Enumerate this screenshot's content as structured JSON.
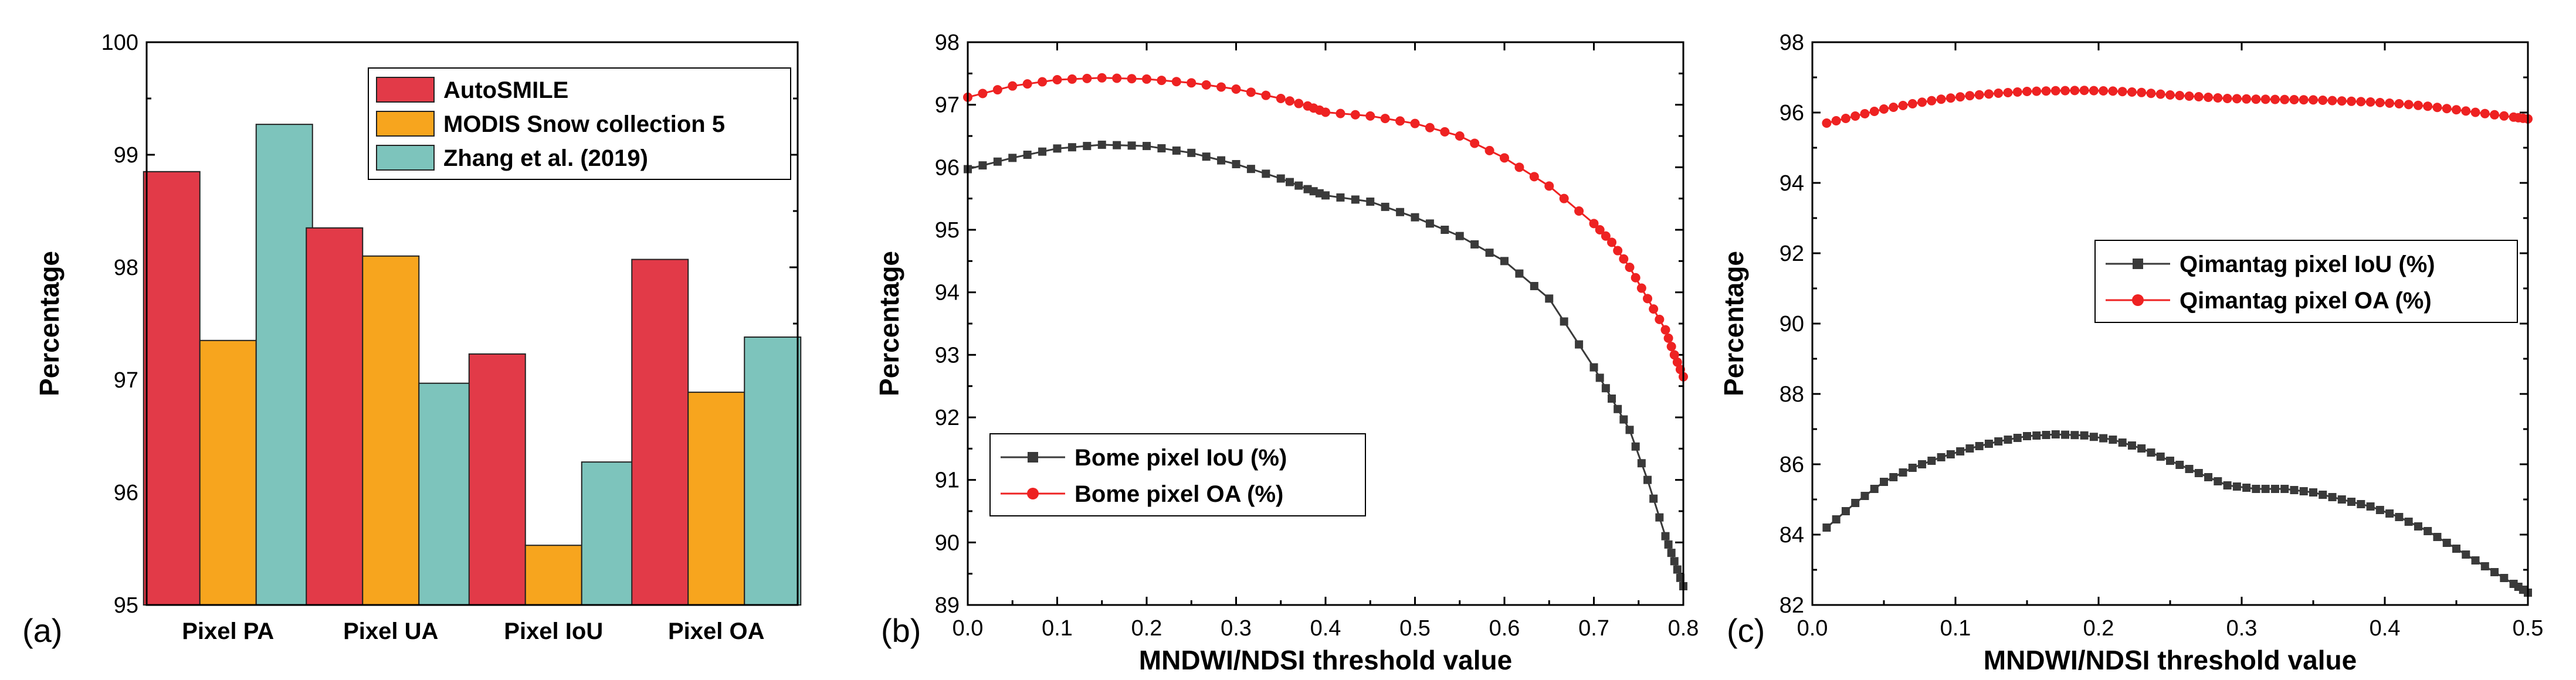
{
  "chart_data": [
    {
      "panel": "(a)",
      "type": "bar",
      "title": "",
      "xlabel": "",
      "ylabel": "Percentage",
      "ylim": [
        95,
        100
      ],
      "yticks": [
        "95",
        "96",
        "97",
        "98",
        "99",
        "100"
      ],
      "categories": [
        "Pixel PA",
        "Pixel UA",
        "Pixel IoU",
        "Pixel OA"
      ],
      "series": [
        {
          "name": "AutoSMILE",
          "color": "#e23a48",
          "values": [
            98.85,
            98.35,
            97.23,
            98.07
          ]
        },
        {
          "name": "MODIS Snow collection 5",
          "color": "#f7a51e",
          "values": [
            97.35,
            98.1,
            95.53,
            96.89
          ]
        },
        {
          "name": "Zhang et al. (2019)",
          "color": "#7dc4bc",
          "values": [
            99.27,
            96.97,
            96.27,
            97.38
          ]
        }
      ],
      "legend_position": "top-right"
    },
    {
      "panel": "(b)",
      "type": "line",
      "title": "",
      "xlabel": "MNDWI/NDSI threshold value",
      "ylabel": "Percentage",
      "xlim": [
        0,
        0.8
      ],
      "ylim": [
        89,
        98
      ],
      "xticks": [
        "0.0",
        "0.1",
        "0.2",
        "0.3",
        "0.4",
        "0.5",
        "0.6",
        "0.7",
        "0.8"
      ],
      "yticks": [
        "89",
        "90",
        "91",
        "92",
        "93",
        "94",
        "95",
        "96",
        "97",
        "98"
      ],
      "x": [
        0,
        0.05,
        0.1,
        0.15,
        0.2,
        0.25,
        0.3,
        0.35,
        0.38,
        0.4,
        0.45,
        0.5,
        0.55,
        0.6,
        0.65,
        0.7,
        0.72,
        0.74,
        0.76,
        0.78,
        0.79,
        0.8
      ],
      "series": [
        {
          "name": "Bome pixel IoU (%)",
          "color": "#3a3a3a",
          "marker": "square",
          "values": [
            95.97,
            96.15,
            96.3,
            96.36,
            96.34,
            96.23,
            96.05,
            95.82,
            95.65,
            95.55,
            95.45,
            95.2,
            94.9,
            94.5,
            93.9,
            92.8,
            92.3,
            91.8,
            91.0,
            90.1,
            89.7,
            89.3
          ]
        },
        {
          "name": "Bome pixel OA (%)",
          "color": "#ee2222",
          "marker": "circle",
          "values": [
            97.12,
            97.3,
            97.4,
            97.43,
            97.41,
            97.35,
            97.25,
            97.1,
            96.98,
            96.88,
            96.82,
            96.7,
            96.5,
            96.15,
            95.7,
            95.1,
            94.8,
            94.4,
            93.9,
            93.4,
            93.0,
            92.65
          ]
        }
      ],
      "legend_position": "bottom-left"
    },
    {
      "panel": "(c)",
      "type": "line",
      "title": "",
      "xlabel": "MNDWI/NDSI threshold value",
      "ylabel": "Percentage",
      "xlim": [
        0,
        0.5
      ],
      "ylim": [
        82,
        98
      ],
      "xticks": [
        "0.0",
        "0.1",
        "0.2",
        "0.3",
        "0.4",
        "0.5"
      ],
      "yticks": [
        "82",
        "84",
        "86",
        "88",
        "90",
        "92",
        "94",
        "96",
        "98"
      ],
      "x": [
        0.01,
        0.03,
        0.05,
        0.07,
        0.09,
        0.11,
        0.13,
        0.15,
        0.17,
        0.19,
        0.21,
        0.23,
        0.25,
        0.27,
        0.29,
        0.31,
        0.33,
        0.35,
        0.37,
        0.39,
        0.41,
        0.43,
        0.45,
        0.47,
        0.49,
        0.5
      ],
      "series": [
        {
          "name": "Qimantag pixel IoU (%)",
          "color": "#3a3a3a",
          "marker": "square",
          "values": [
            84.2,
            84.9,
            85.5,
            85.9,
            86.2,
            86.45,
            86.65,
            86.8,
            86.85,
            86.82,
            86.7,
            86.45,
            86.1,
            85.75,
            85.4,
            85.3,
            85.3,
            85.2,
            85.0,
            84.8,
            84.5,
            84.1,
            83.6,
            83.1,
            82.6,
            82.35
          ]
        },
        {
          "name": "Qimantag pixel OA (%)",
          "color": "#ee2222",
          "marker": "circle",
          "values": [
            95.7,
            95.9,
            96.1,
            96.25,
            96.38,
            96.48,
            96.55,
            96.6,
            96.62,
            96.63,
            96.61,
            96.57,
            96.5,
            96.45,
            96.4,
            96.38,
            96.37,
            96.36,
            96.33,
            96.3,
            96.25,
            96.18,
            96.08,
            95.97,
            95.87,
            95.82
          ]
        }
      ],
      "legend_position": "center-right"
    }
  ]
}
